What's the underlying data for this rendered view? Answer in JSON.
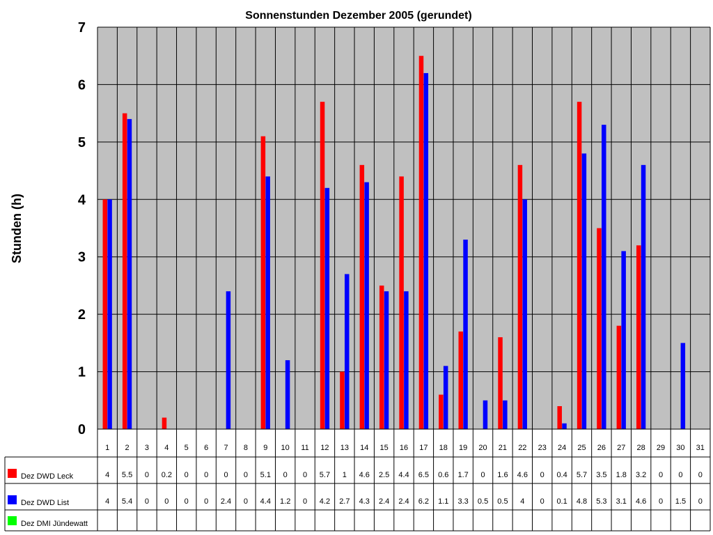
{
  "chart_data": {
    "type": "bar",
    "title": "Sonnenstunden Dezember 2005 (gerundet)",
    "ylabel": "Stunden (h)",
    "xlabel": "",
    "ylim": [
      0,
      7
    ],
    "yticks": [
      0,
      1,
      2,
      3,
      4,
      5,
      6,
      7
    ],
    "grid": true,
    "legend": "data-table-left",
    "categories": [
      "1",
      "2",
      "3",
      "4",
      "5",
      "6",
      "7",
      "8",
      "9",
      "10",
      "11",
      "12",
      "13",
      "14",
      "15",
      "16",
      "17",
      "18",
      "19",
      "20",
      "21",
      "22",
      "23",
      "24",
      "25",
      "26",
      "27",
      "28",
      "29",
      "30",
      "31"
    ],
    "series": [
      {
        "name": "Dez DWD Leck",
        "color": "#ff0000",
        "values": [
          4,
          5.5,
          0,
          0.2,
          0,
          0,
          0,
          0,
          5.1,
          0,
          0,
          5.7,
          1,
          4.6,
          2.5,
          4.4,
          6.5,
          0.6,
          1.7,
          0,
          1.6,
          4.6,
          0,
          0.4,
          5.7,
          3.5,
          1.8,
          3.2,
          0,
          0,
          0
        ]
      },
      {
        "name": "Dez DWD List",
        "color": "#0000ff",
        "values": [
          4,
          5.4,
          0,
          0,
          0,
          0,
          2.4,
          0,
          4.4,
          1.2,
          0,
          4.2,
          2.7,
          4.3,
          2.4,
          2.4,
          6.2,
          1.1,
          3.3,
          0.5,
          0.5,
          4,
          0,
          0.1,
          4.8,
          5.3,
          3.1,
          4.6,
          0,
          1.5,
          0
        ]
      },
      {
        "name": "Dez DMI Jündewatt",
        "color": "#00ff00",
        "values": [
          null,
          null,
          null,
          null,
          null,
          null,
          null,
          null,
          null,
          null,
          null,
          null,
          null,
          null,
          null,
          null,
          null,
          null,
          null,
          null,
          null,
          null,
          null,
          null,
          null,
          null,
          null,
          null,
          null,
          null,
          null
        ]
      }
    ]
  }
}
